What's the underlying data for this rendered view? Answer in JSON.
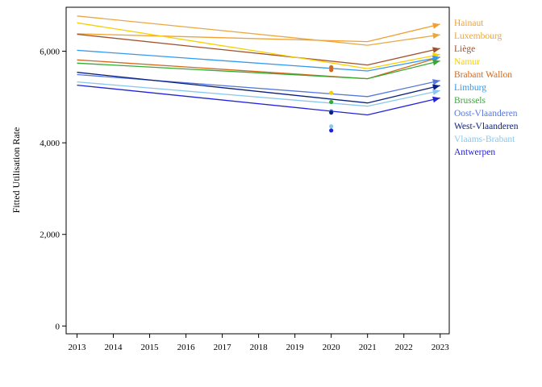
{
  "chart_data": {
    "type": "line",
    "ylabel": "Fitted Utilisation Rate",
    "xlabel": "",
    "x": [
      2013,
      2014,
      2015,
      2016,
      2017,
      2018,
      2019,
      2020,
      2021,
      2022,
      2023
    ],
    "x_tick_labels": [
      "2013",
      "2014",
      "2015",
      "2016",
      "2017",
      "2018",
      "2019",
      "2020",
      "2021",
      "2022",
      "2023"
    ],
    "y_ticks": [
      0,
      2000,
      4000,
      6000
    ],
    "y_tick_labels": [
      "0",
      "2,000",
      "4,000",
      "6,000"
    ],
    "xlim": [
      2012.7,
      2023.25
    ],
    "ylim": [
      -170,
      6960
    ],
    "grid": false,
    "legend": "right",
    "series": [
      {
        "name": "Hainaut",
        "color": "#f0a030",
        "x": [
          2013,
          2021,
          2023
        ],
        "values": [
          6380,
          6210,
          6590
        ],
        "observed_2020": []
      },
      {
        "name": "Luxembourg",
        "color": "#e8a840",
        "x": [
          2013,
          2021,
          2023
        ],
        "values": [
          6770,
          6130,
          6360
        ],
        "observed_2020": []
      },
      {
        "name": "Liège",
        "color": "#a0522d",
        "x": [
          2013,
          2021,
          2023
        ],
        "values": [
          6370,
          5700,
          6060
        ],
        "observed_2020": []
      },
      {
        "name": "Namur",
        "color": "#f5d000",
        "x": [
          2013,
          2021,
          2023
        ],
        "values": [
          6620,
          5620,
          5930
        ],
        "observed_2020": [
          5090
        ]
      },
      {
        "name": "Brabant Wallon",
        "color": "#d2691e",
        "x": [
          2013,
          2021,
          2023
        ],
        "values": [
          5810,
          5400,
          5870
        ],
        "observed_2020": [
          5650,
          5590
        ]
      },
      {
        "name": "Limburg",
        "color": "#3399ee",
        "x": [
          2013,
          2021,
          2023
        ],
        "values": [
          6020,
          5570,
          5870
        ],
        "observed_2020": []
      },
      {
        "name": "Brussels",
        "color": "#33aa33",
        "x": [
          2013,
          2021,
          2023
        ],
        "values": [
          5740,
          5400,
          5790
        ],
        "observed_2020": [
          4890
        ]
      },
      {
        "name": "Oost-Vlaanderen",
        "color": "#5577dd",
        "x": [
          2013,
          2021,
          2023
        ],
        "values": [
          5490,
          5010,
          5360
        ],
        "observed_2020": [
          4690
        ]
      },
      {
        "name": "West-Vlaanderen",
        "color": "#0a1f80",
        "x": [
          2013,
          2021,
          2023
        ],
        "values": [
          5540,
          4870,
          5250
        ],
        "observed_2020": [
          4660
        ]
      },
      {
        "name": "Vlaams-Brabant",
        "color": "#88c8ee",
        "x": [
          2013,
          2021,
          2023
        ],
        "values": [
          5330,
          4800,
          5140
        ],
        "observed_2020": [
          4360
        ]
      },
      {
        "name": "Antwerpen",
        "color": "#2222dd",
        "x": [
          2013,
          2021,
          2023
        ],
        "values": [
          5260,
          4610,
          4980
        ],
        "observed_2020": [
          4270
        ]
      }
    ]
  }
}
